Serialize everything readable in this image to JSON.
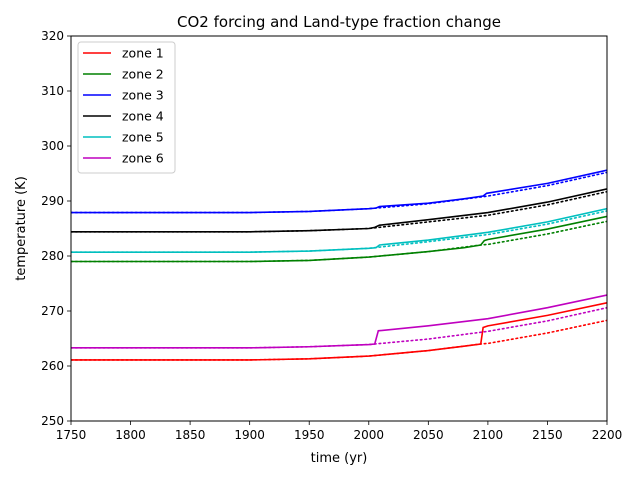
{
  "chart_data": {
    "type": "line",
    "title": "CO2 forcing and Land-type fraction change",
    "xlabel": "time (yr)",
    "ylabel": "temperature (K)",
    "xlim": [
      1750,
      2200
    ],
    "ylim": [
      250,
      320
    ],
    "xticks": [
      1750,
      1800,
      1850,
      1900,
      1950,
      2000,
      2050,
      2100,
      2150,
      2200
    ],
    "yticks": [
      250,
      260,
      270,
      280,
      290,
      300,
      310,
      320
    ],
    "grid": false,
    "legend_position": "upper-left",
    "series": [
      {
        "name": "zone 1",
        "color": "#ff0000",
        "style": "solid",
        "points": [
          [
            1750,
            261.1
          ],
          [
            1800,
            261.1
          ],
          [
            1850,
            261.1
          ],
          [
            1900,
            261.1
          ],
          [
            1950,
            261.3
          ],
          [
            2000,
            261.8
          ],
          [
            2050,
            262.8
          ],
          [
            2080,
            263.6
          ],
          [
            2094,
            264.0
          ],
          [
            2096,
            267.0
          ],
          [
            2100,
            267.3
          ],
          [
            2150,
            269.2
          ],
          [
            2200,
            271.5
          ]
        ]
      },
      {
        "name": "",
        "color": "#ff0000",
        "style": "dotted",
        "points": [
          [
            1750,
            261.1
          ],
          [
            1800,
            261.1
          ],
          [
            1850,
            261.1
          ],
          [
            1900,
            261.1
          ],
          [
            1950,
            261.3
          ],
          [
            2000,
            261.8
          ],
          [
            2050,
            262.8
          ],
          [
            2094,
            264.0
          ],
          [
            2100,
            264.1
          ],
          [
            2150,
            266.0
          ],
          [
            2200,
            268.3
          ]
        ]
      },
      {
        "name": "zone 2",
        "color": "#008000",
        "style": "solid",
        "points": [
          [
            1750,
            279.0
          ],
          [
            1800,
            279.0
          ],
          [
            1850,
            279.0
          ],
          [
            1900,
            279.0
          ],
          [
            1950,
            279.2
          ],
          [
            2000,
            279.8
          ],
          [
            2050,
            280.8
          ],
          [
            2080,
            281.5
          ],
          [
            2094,
            282.0
          ],
          [
            2097,
            282.8
          ],
          [
            2100,
            283.0
          ],
          [
            2150,
            284.9
          ],
          [
            2200,
            287.2
          ]
        ]
      },
      {
        "name": "",
        "color": "#008000",
        "style": "dotted",
        "points": [
          [
            1750,
            279.0
          ],
          [
            1800,
            279.0
          ],
          [
            1850,
            279.0
          ],
          [
            1900,
            279.0
          ],
          [
            1950,
            279.2
          ],
          [
            2000,
            279.8
          ],
          [
            2050,
            280.8
          ],
          [
            2094,
            282.0
          ],
          [
            2100,
            282.1
          ],
          [
            2150,
            284.0
          ],
          [
            2200,
            286.3
          ]
        ]
      },
      {
        "name": "zone 3",
        "color": "#0000ff",
        "style": "solid",
        "points": [
          [
            1750,
            287.9
          ],
          [
            1800,
            287.9
          ],
          [
            1850,
            287.9
          ],
          [
            1900,
            287.9
          ],
          [
            1950,
            288.1
          ],
          [
            2000,
            288.6
          ],
          [
            2006,
            288.7
          ],
          [
            2009,
            289.0
          ],
          [
            2050,
            289.6
          ],
          [
            2080,
            290.4
          ],
          [
            2096,
            290.9
          ],
          [
            2099,
            291.4
          ],
          [
            2150,
            293.2
          ],
          [
            2200,
            295.6
          ]
        ]
      },
      {
        "name": "",
        "color": "#0000ff",
        "style": "dotted",
        "points": [
          [
            1750,
            287.9
          ],
          [
            1800,
            287.9
          ],
          [
            1850,
            287.9
          ],
          [
            1900,
            287.9
          ],
          [
            1950,
            288.1
          ],
          [
            2000,
            288.6
          ],
          [
            2050,
            289.5
          ],
          [
            2100,
            290.9
          ],
          [
            2150,
            292.8
          ],
          [
            2200,
            295.2
          ]
        ]
      },
      {
        "name": "zone 4",
        "color": "#000000",
        "style": "solid",
        "points": [
          [
            1750,
            284.4
          ],
          [
            1800,
            284.4
          ],
          [
            1850,
            284.4
          ],
          [
            1900,
            284.4
          ],
          [
            1950,
            284.6
          ],
          [
            2000,
            285.0
          ],
          [
            2005,
            285.2
          ],
          [
            2009,
            285.6
          ],
          [
            2050,
            286.6
          ],
          [
            2100,
            287.9
          ],
          [
            2150,
            289.8
          ],
          [
            2200,
            292.2
          ]
        ]
      },
      {
        "name": "",
        "color": "#000000",
        "style": "dotted",
        "points": [
          [
            1750,
            284.4
          ],
          [
            1800,
            284.4
          ],
          [
            1850,
            284.4
          ],
          [
            1900,
            284.4
          ],
          [
            1950,
            284.6
          ],
          [
            2000,
            285.0
          ],
          [
            2050,
            286.2
          ],
          [
            2100,
            287.4
          ],
          [
            2150,
            289.3
          ],
          [
            2200,
            291.7
          ]
        ]
      },
      {
        "name": "zone 5",
        "color": "#00bfbf",
        "style": "solid",
        "points": [
          [
            1750,
            280.7
          ],
          [
            1800,
            280.7
          ],
          [
            1850,
            280.7
          ],
          [
            1900,
            280.7
          ],
          [
            1950,
            280.9
          ],
          [
            2000,
            281.4
          ],
          [
            2006,
            281.5
          ],
          [
            2009,
            282.0
          ],
          [
            2050,
            282.9
          ],
          [
            2100,
            284.3
          ],
          [
            2150,
            286.2
          ],
          [
            2200,
            288.6
          ]
        ]
      },
      {
        "name": "",
        "color": "#00bfbf",
        "style": "dotted",
        "points": [
          [
            1750,
            280.7
          ],
          [
            1800,
            280.7
          ],
          [
            1850,
            280.7
          ],
          [
            1900,
            280.7
          ],
          [
            1950,
            280.9
          ],
          [
            2000,
            281.4
          ],
          [
            2050,
            282.6
          ],
          [
            2100,
            283.9
          ],
          [
            2150,
            285.8
          ],
          [
            2200,
            288.2
          ]
        ]
      },
      {
        "name": "zone 6",
        "color": "#bf00bf",
        "style": "solid",
        "points": [
          [
            1750,
            263.3
          ],
          [
            1800,
            263.3
          ],
          [
            1850,
            263.3
          ],
          [
            1900,
            263.3
          ],
          [
            1950,
            263.5
          ],
          [
            2000,
            263.9
          ],
          [
            2005,
            264.0
          ],
          [
            2008,
            266.4
          ],
          [
            2050,
            267.3
          ],
          [
            2100,
            268.6
          ],
          [
            2150,
            270.6
          ],
          [
            2200,
            272.9
          ]
        ]
      },
      {
        "name": "",
        "color": "#bf00bf",
        "style": "dotted",
        "points": [
          [
            1750,
            263.3
          ],
          [
            1800,
            263.3
          ],
          [
            1850,
            263.3
          ],
          [
            1900,
            263.3
          ],
          [
            1950,
            263.5
          ],
          [
            2000,
            263.9
          ],
          [
            2050,
            264.9
          ],
          [
            2100,
            266.3
          ],
          [
            2150,
            268.2
          ],
          [
            2200,
            270.6
          ]
        ]
      }
    ]
  }
}
